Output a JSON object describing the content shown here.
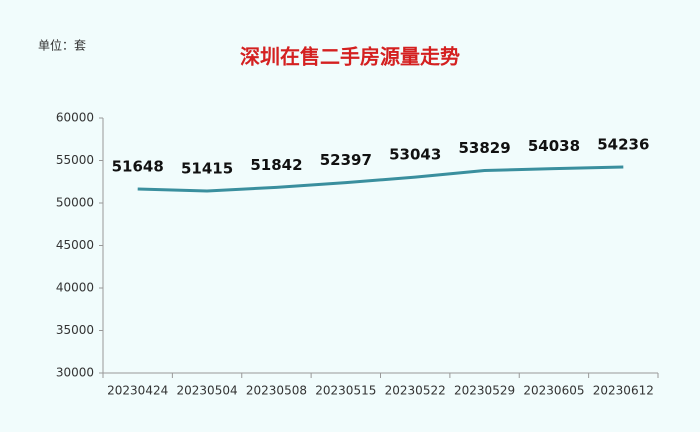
{
  "chart_data": {
    "type": "line",
    "title": "深圳在售二手房源量走势",
    "unit_label": "单位：套",
    "categories": [
      "20230424",
      "20230504",
      "20230508",
      "20230515",
      "20230522",
      "20230529",
      "20230605",
      "20230612"
    ],
    "values": [
      51648,
      51415,
      51842,
      52397,
      53043,
      53829,
      54038,
      54236
    ],
    "color": "#3a8f9e",
    "ylim": [
      30000,
      60000
    ],
    "yticks": [
      30000,
      35000,
      40000,
      45000,
      50000,
      55000,
      60000
    ],
    "grid": false
  }
}
